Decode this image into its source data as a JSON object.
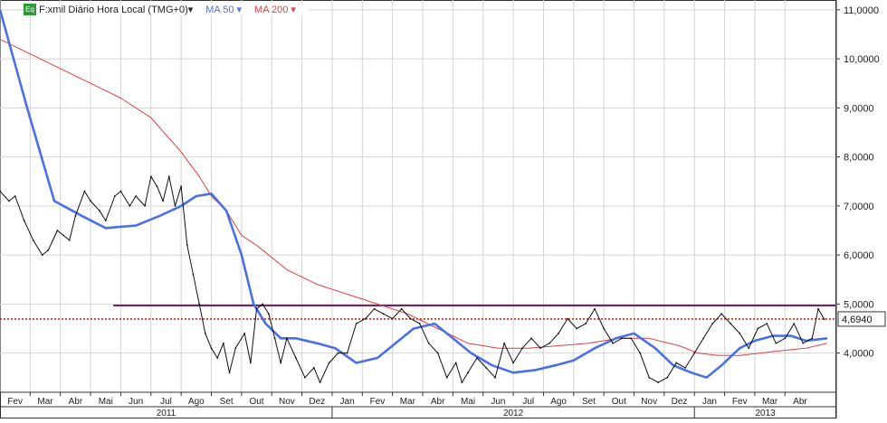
{
  "legend": {
    "symbol_badge": "Eq",
    "main_series": "F:xmil Diário Hora Local (TMG+0)",
    "ma50": "MA 50",
    "ma200": "MA 200",
    "dropdown_glyph": "▾"
  },
  "colors": {
    "price": "#111111",
    "ma50": "#4a6fe6",
    "ma200": "#e04040",
    "resistance": "#7a1f6e",
    "last_price_line": "#c00000",
    "grid": "#d4d4d4",
    "axis": "#333333"
  },
  "chart_data": {
    "type": "line",
    "ylim": [
      3.2,
      11.2
    ],
    "y_ticks": [
      "11,0000",
      "10,0000",
      "9,0000",
      "8,0000",
      "7,0000",
      "6,0000",
      "5,0000",
      "4,0000"
    ],
    "y_tick_values": [
      11,
      10,
      9,
      8,
      7,
      6,
      5,
      4
    ],
    "x_month_labels": [
      "Fev",
      "Mar",
      "Abr",
      "Mai",
      "Jun",
      "Jul",
      "Ago",
      "Set",
      "Out",
      "Nov",
      "Dez",
      "Jan",
      "Fev",
      "Mar",
      "Abr",
      "Mai",
      "Jun",
      "Jul",
      "Ago",
      "Set",
      "Out",
      "Nov",
      "Dez",
      "Jan",
      "Fev",
      "Mar",
      "Abr"
    ],
    "x_month_index": [
      1,
      2,
      3,
      4,
      5,
      6,
      7,
      8,
      9,
      10,
      11,
      12,
      13,
      14,
      15,
      16,
      17,
      18,
      19,
      20,
      21,
      22,
      23,
      24,
      25,
      26,
      27
    ],
    "x_years": [
      {
        "label": "2011",
        "from": 0.5,
        "to": 11.5
      },
      {
        "label": "2012",
        "from": 11.5,
        "to": 23.5
      },
      {
        "label": "2013",
        "from": 23.5,
        "to": 28.2
      }
    ],
    "x_range": [
      0.5,
      28.2
    ],
    "last_price_label": "4,6940",
    "last_price": 4.694,
    "horizontal_line": 4.97,
    "horizontal_line_start_x": 4.25,
    "series": [
      {
        "name": "F:xmil Diário Hora Local (TMG+0)",
        "x": [
          0.5,
          0.8,
          1.0,
          1.3,
          1.6,
          1.9,
          2.1,
          2.4,
          2.6,
          2.8,
          3.0,
          3.3,
          3.5,
          3.8,
          4.0,
          4.3,
          4.5,
          4.8,
          5.0,
          5.3,
          5.5,
          5.7,
          5.9,
          6.1,
          6.3,
          6.5,
          6.7,
          6.9,
          7.1,
          7.3,
          7.5,
          7.7,
          7.9,
          8.1,
          8.3,
          8.6,
          8.8,
          9.0,
          9.2,
          9.4,
          9.6,
          9.8,
          10.0,
          10.3,
          10.6,
          10.9,
          11.1,
          11.4,
          11.7,
          12.0,
          12.3,
          12.6,
          12.9,
          13.2,
          13.5,
          13.8,
          14.1,
          14.4,
          14.7,
          15.0,
          15.3,
          15.6,
          15.8,
          16.0,
          16.3,
          16.6,
          16.9,
          17.2,
          17.5,
          17.8,
          18.1,
          18.4,
          18.7,
          19.0,
          19.3,
          19.6,
          19.9,
          20.2,
          20.5,
          20.8,
          21.1,
          21.4,
          21.7,
          22.0,
          22.3,
          22.6,
          22.9,
          23.2,
          23.5,
          23.8,
          24.1,
          24.4,
          24.7,
          25.0,
          25.3,
          25.6,
          25.9,
          26.2,
          26.5,
          26.8,
          27.1,
          27.4,
          27.6,
          27.8
        ],
        "values": [
          7.3,
          7.1,
          7.2,
          6.7,
          6.3,
          6.0,
          6.1,
          6.5,
          6.4,
          6.3,
          6.8,
          7.3,
          7.1,
          6.9,
          6.7,
          7.2,
          7.3,
          7.0,
          7.2,
          7.0,
          7.6,
          7.4,
          7.1,
          7.6,
          7.0,
          7.4,
          6.2,
          5.6,
          5.0,
          4.4,
          4.1,
          3.9,
          4.2,
          3.6,
          4.1,
          4.4,
          3.8,
          4.9,
          5.0,
          4.8,
          4.3,
          3.8,
          4.3,
          3.9,
          3.5,
          3.7,
          3.4,
          3.8,
          4.0,
          4.0,
          4.6,
          4.7,
          4.9,
          4.8,
          4.7,
          4.9,
          4.7,
          4.6,
          4.2,
          4.0,
          3.5,
          3.8,
          3.4,
          3.6,
          3.9,
          3.7,
          3.5,
          4.2,
          3.8,
          4.1,
          4.3,
          4.1,
          4.2,
          4.4,
          4.7,
          4.5,
          4.6,
          4.9,
          4.5,
          4.2,
          4.3,
          4.3,
          4.0,
          3.5,
          3.4,
          3.5,
          3.8,
          3.7,
          4.0,
          4.3,
          4.6,
          4.8,
          4.6,
          4.4,
          4.1,
          4.5,
          4.6,
          4.2,
          4.3,
          4.6,
          4.2,
          4.3,
          4.9,
          4.69
        ]
      },
      {
        "name": "MA 50",
        "x": [
          0.5,
          1.4,
          2.3,
          3.2,
          4.0,
          5.0,
          5.8,
          6.5,
          7.0,
          7.5,
          8.0,
          8.5,
          8.9,
          9.3,
          9.8,
          10.3,
          11.0,
          11.6,
          12.3,
          13.0,
          13.6,
          14.2,
          14.9,
          15.5,
          16.1,
          16.8,
          17.5,
          18.2,
          18.9,
          19.5,
          20.2,
          20.9,
          21.5,
          22.2,
          22.8,
          23.4,
          23.9,
          24.4,
          25.0,
          25.5,
          26.1,
          26.7,
          27.2,
          27.9
        ],
        "values": [
          11.0,
          9.0,
          7.1,
          6.8,
          6.55,
          6.6,
          6.8,
          7.0,
          7.2,
          7.25,
          6.9,
          6.0,
          5.0,
          4.6,
          4.3,
          4.3,
          4.2,
          4.1,
          3.8,
          3.9,
          4.2,
          4.5,
          4.6,
          4.3,
          4.0,
          3.75,
          3.6,
          3.65,
          3.75,
          3.85,
          4.1,
          4.3,
          4.4,
          4.1,
          3.75,
          3.6,
          3.5,
          3.75,
          4.1,
          4.25,
          4.35,
          4.35,
          4.25,
          4.3
        ]
      },
      {
        "name": "MA 200",
        "x": [
          0.5,
          1.5,
          2.5,
          3.5,
          4.5,
          5.5,
          6.5,
          7.1,
          7.5,
          8.0,
          8.5,
          9.0,
          10.0,
          11.0,
          12.0,
          13.0,
          14.0,
          15.0,
          16.0,
          17.0,
          18.0,
          19.0,
          20.0,
          21.0,
          22.0,
          23.0,
          23.6,
          24.3,
          25.0,
          25.7,
          26.4,
          27.2,
          27.9
        ],
        "values": [
          10.4,
          10.1,
          9.8,
          9.5,
          9.2,
          8.8,
          8.1,
          7.6,
          7.2,
          6.9,
          6.4,
          6.2,
          5.7,
          5.4,
          5.2,
          5.0,
          4.8,
          4.5,
          4.2,
          4.1,
          4.1,
          4.15,
          4.2,
          4.3,
          4.3,
          4.15,
          4.0,
          3.95,
          3.95,
          4.0,
          4.05,
          4.1,
          4.2
        ]
      }
    ]
  }
}
